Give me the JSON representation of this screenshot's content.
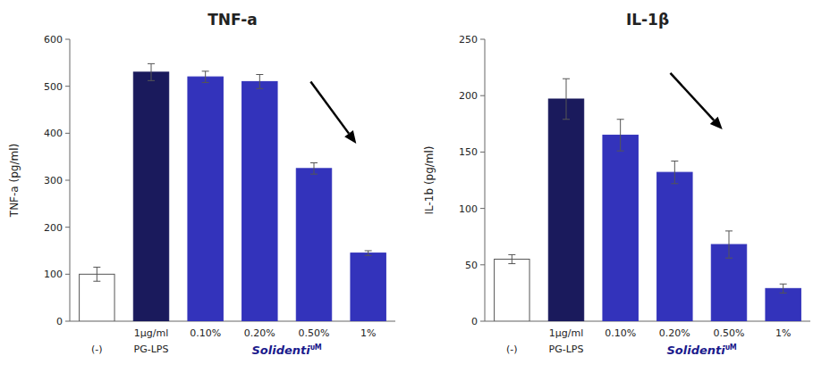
{
  "chart_data": [
    {
      "type": "bar",
      "title": "TNF-a",
      "ylabel": "TNF-a (pg/ml)",
      "categories": [
        "(-)",
        "1μg/ml\nPG-LPS",
        "0.10%",
        "0.20%",
        "0.50%",
        "1%"
      ],
      "values": [
        100,
        530,
        520,
        510,
        325,
        145
      ],
      "errors": [
        15,
        18,
        12,
        15,
        12,
        5
      ],
      "colors": [
        "white",
        "#1a1a5c",
        "#3333bb",
        "#3333bb",
        "#3333bb",
        "#3333bb"
      ],
      "ylim": [
        0,
        600
      ],
      "yticks": [
        0,
        100,
        200,
        300,
        400,
        500,
        600
      ],
      "annotations": [
        "Solidenti",
        "ᴜM"
      ],
      "grid": false
    },
    {
      "type": "bar",
      "title": "IL-1β",
      "ylabel": "IL-1b (pg/ml)",
      "categories": [
        "(-)",
        "1μg/ml\nPG-LPS",
        "0.10%",
        "0.20%",
        "0.50%",
        "1%"
      ],
      "values": [
        55,
        197,
        165,
        132,
        68,
        29
      ],
      "errors": [
        4,
        18,
        14,
        10,
        12,
        4
      ],
      "colors": [
        "white",
        "#1a1a5c",
        "#3333bb",
        "#3333bb",
        "#3333bb",
        "#3333bb"
      ],
      "ylim": [
        0,
        250
      ],
      "yticks": [
        0,
        50,
        100,
        150,
        200,
        250
      ],
      "annotations": [
        "Solidenti",
        "ᴜM"
      ],
      "grid": false
    }
  ]
}
